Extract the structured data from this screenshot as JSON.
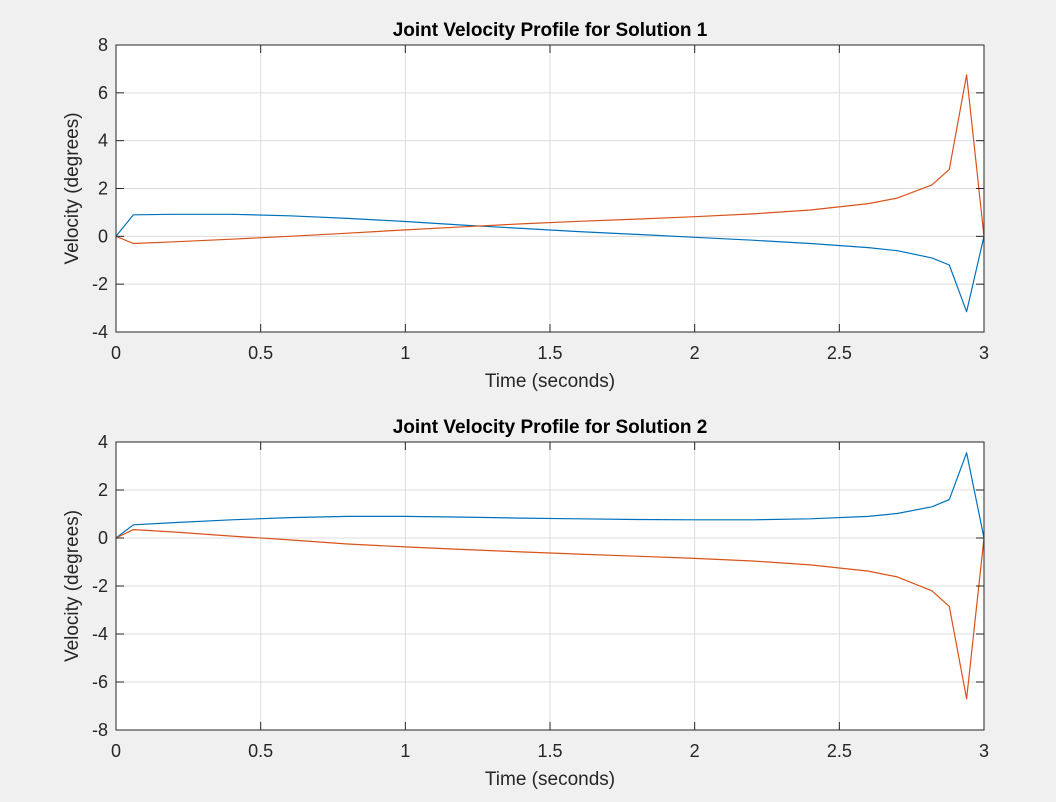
{
  "figure": {
    "background": "#f0f0f0"
  },
  "chart_data": [
    {
      "type": "line",
      "title": "Joint Velocity Profile for Solution 1",
      "xlabel": "Time (seconds)",
      "ylabel": "Velocity (degrees)",
      "xlim": [
        0,
        3
      ],
      "ylim": [
        -4,
        8
      ],
      "xticks": [
        0,
        0.5,
        1,
        1.5,
        2,
        2.5,
        3
      ],
      "xtick_labels": [
        "0",
        "0.5",
        "1",
        "1.5",
        "2",
        "2.5",
        "3"
      ],
      "yticks": [
        -4,
        -2,
        0,
        2,
        4,
        6,
        8
      ],
      "ytick_labels": [
        "-4",
        "-2",
        "0",
        "2",
        "4",
        "6",
        "8"
      ],
      "grid": true,
      "series": [
        {
          "color": "#0072bd",
          "x": [
            0,
            0.06,
            0.2,
            0.4,
            0.6,
            0.8,
            1.0,
            1.2,
            1.4,
            1.6,
            1.8,
            2.0,
            2.2,
            2.4,
            2.6,
            2.7,
            2.82,
            2.88,
            2.94,
            3.0
          ],
          "y": [
            0,
            0.9,
            0.92,
            0.92,
            0.86,
            0.75,
            0.62,
            0.47,
            0.33,
            0.2,
            0.08,
            -0.04,
            -0.16,
            -0.3,
            -0.47,
            -0.6,
            -0.9,
            -1.2,
            -3.15,
            0
          ]
        },
        {
          "color": "#d95319",
          "x": [
            0,
            0.06,
            0.2,
            0.4,
            0.6,
            0.8,
            1.0,
            1.2,
            1.4,
            1.6,
            1.8,
            2.0,
            2.2,
            2.4,
            2.6,
            2.7,
            2.82,
            2.88,
            2.94,
            3.0
          ],
          "y": [
            0,
            -0.3,
            -0.23,
            -0.12,
            0.0,
            0.13,
            0.27,
            0.4,
            0.52,
            0.63,
            0.72,
            0.82,
            0.94,
            1.1,
            1.37,
            1.6,
            2.15,
            2.8,
            6.75,
            0
          ]
        }
      ]
    },
    {
      "type": "line",
      "title": "Joint Velocity Profile for Solution 2",
      "xlabel": "Time (seconds)",
      "ylabel": "Velocity (degrees)",
      "xlim": [
        0,
        3
      ],
      "ylim": [
        -8,
        4
      ],
      "xticks": [
        0,
        0.5,
        1,
        1.5,
        2,
        2.5,
        3
      ],
      "xtick_labels": [
        "0",
        "0.5",
        "1",
        "1.5",
        "2",
        "2.5",
        "3"
      ],
      "yticks": [
        -8,
        -6,
        -4,
        -2,
        0,
        2,
        4
      ],
      "ytick_labels": [
        "-8",
        "-6",
        "-4",
        "-2",
        "0",
        "2",
        "4"
      ],
      "grid": true,
      "series": [
        {
          "color": "#0072bd",
          "x": [
            0,
            0.06,
            0.2,
            0.4,
            0.6,
            0.8,
            1.0,
            1.2,
            1.4,
            1.6,
            1.8,
            2.0,
            2.2,
            2.4,
            2.6,
            2.7,
            2.82,
            2.88,
            2.94,
            3.0
          ],
          "y": [
            0,
            0.55,
            0.64,
            0.76,
            0.85,
            0.9,
            0.9,
            0.87,
            0.83,
            0.8,
            0.77,
            0.76,
            0.76,
            0.8,
            0.9,
            1.02,
            1.3,
            1.6,
            3.55,
            0
          ]
        },
        {
          "color": "#d95319",
          "x": [
            0,
            0.06,
            0.2,
            0.4,
            0.6,
            0.8,
            1.0,
            1.2,
            1.4,
            1.6,
            1.8,
            2.0,
            2.2,
            2.4,
            2.6,
            2.7,
            2.82,
            2.88,
            2.94,
            3.0
          ],
          "y": [
            0,
            0.35,
            0.25,
            0.08,
            -0.08,
            -0.25,
            -0.37,
            -0.48,
            -0.58,
            -0.67,
            -0.76,
            -0.85,
            -0.96,
            -1.12,
            -1.38,
            -1.62,
            -2.2,
            -2.85,
            -6.7,
            0
          ]
        }
      ]
    }
  ]
}
